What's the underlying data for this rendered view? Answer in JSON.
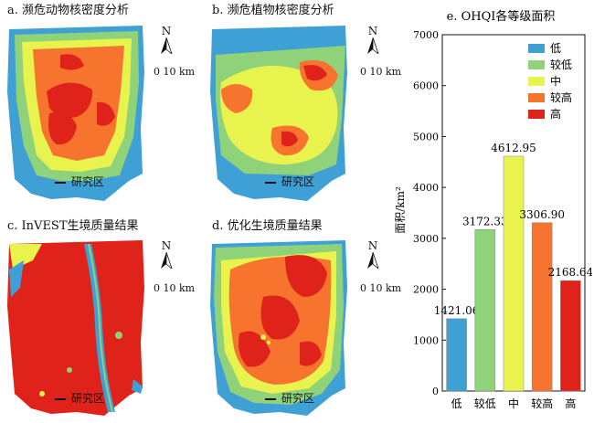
{
  "panels": [
    {
      "title": "a. 濒危动物核密度分析",
      "study_label": "研究区"
    },
    {
      "title": "b. 濒危植物核密度分析",
      "study_label": "研究区"
    },
    {
      "title": "c. InVEST生境质量结果",
      "study_label": "研究区"
    },
    {
      "title": "d. 优化生境质量结果",
      "study_label": "研究区"
    }
  ],
  "north_label": "N",
  "scale_label": "0  10 km",
  "colors": {
    "低": "#3fa0d6",
    "较低": "#8fd27a",
    "中": "#e9f34d",
    "较高": "#f7742e",
    "高": "#e0231a"
  },
  "chart_data": {
    "type": "bar",
    "title": "e. OHQI各等级面积",
    "ylabel": "面积/km²",
    "ylim": [
      0,
      7000
    ],
    "yticks": [
      0,
      1000,
      2000,
      3000,
      4000,
      5000,
      6000,
      7000
    ],
    "categories": [
      "低",
      "较低",
      "中",
      "较高",
      "高"
    ],
    "values": [
      1421.06,
      3172.33,
      4612.95,
      3306.9,
      2168.64
    ],
    "value_labels": [
      "1421.06",
      "3172.33",
      "4612.95",
      "3306.90",
      "2168.64"
    ],
    "bar_colors": [
      "#3fa0d6",
      "#8fd27a",
      "#e9f34d",
      "#f7742e",
      "#e0231a"
    ],
    "legend": [
      "低",
      "较低",
      "中",
      "较高",
      "高"
    ],
    "legend_position": "top-right",
    "grid": false
  }
}
